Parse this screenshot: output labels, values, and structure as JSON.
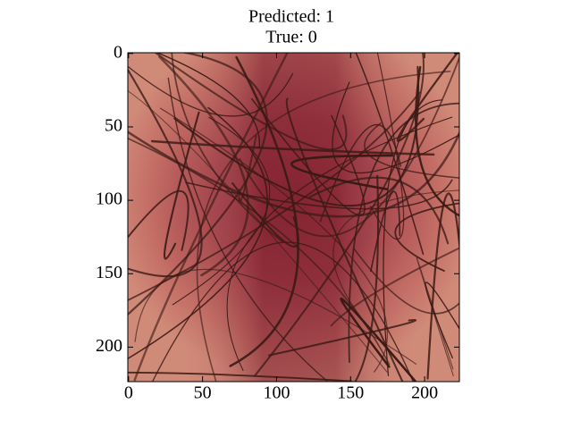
{
  "chart_data": {
    "type": "image",
    "title_lines": [
      "Predicted: 1",
      "True: 0"
    ],
    "xlim": [
      -0.5,
      223.5
    ],
    "ylim": [
      223.5,
      -0.5
    ],
    "xticks": [
      0,
      50,
      100,
      150,
      200
    ],
    "yticks": [
      0,
      50,
      100,
      150,
      200
    ]
  }
}
